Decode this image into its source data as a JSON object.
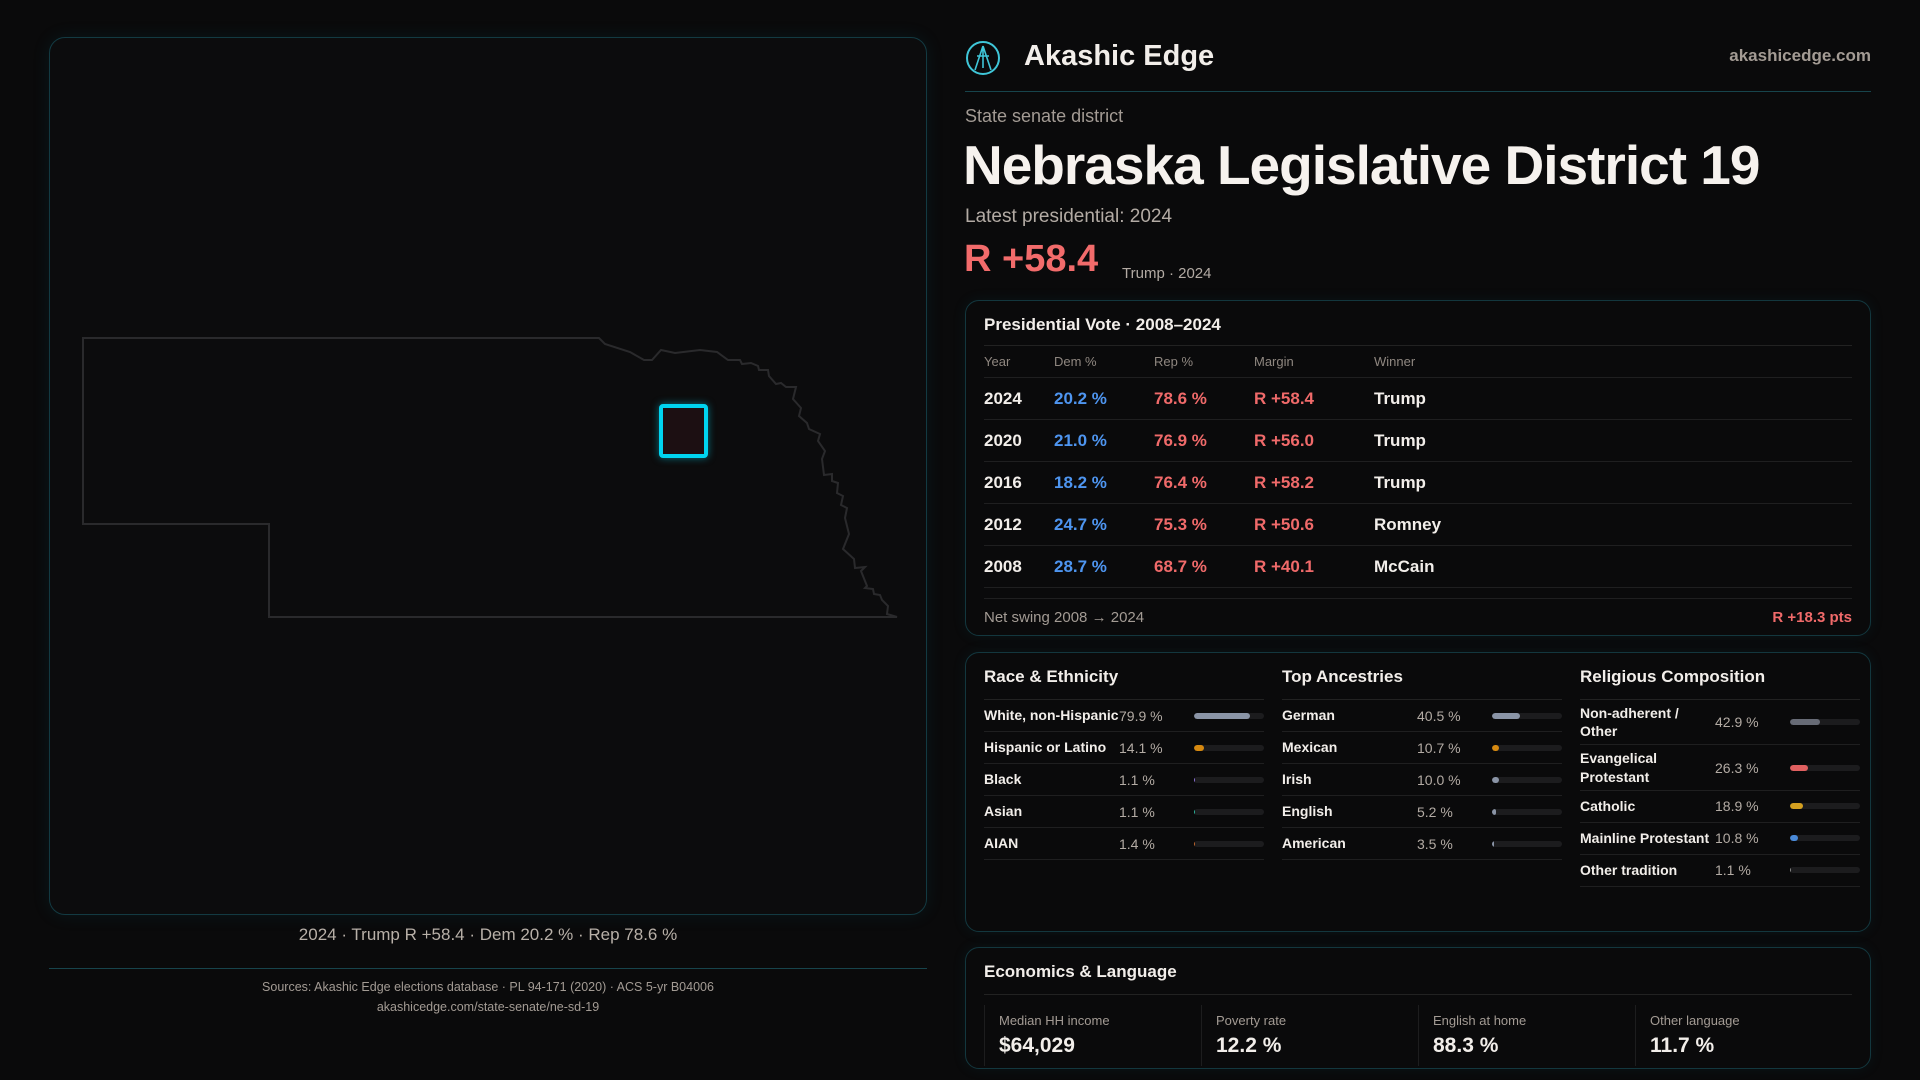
{
  "brand": {
    "name": "Akashic Edge",
    "site": "akashicedge.com",
    "logo_icon": "akashic-edge-logo-icon"
  },
  "kicker": "State senate district",
  "title": "Nebraska Legislative District 19",
  "latest_label": "Latest presidential: 2024",
  "headline_margin": "R +58.4",
  "headline_sub": "Trump · 2024",
  "map": {
    "caption": "2024 · Trump R +58.4 · Dem 20.2 % · Rep 78.6 %",
    "highlight_color": "#00d4f0"
  },
  "presidential": {
    "title": "Presidential Vote · 2008–2024",
    "columns": [
      "Year",
      "Dem %",
      "Rep %",
      "Margin",
      "Winner"
    ],
    "rows": [
      {
        "year": "2024",
        "dem": "20.2 %",
        "rep": "78.6 %",
        "margin": "R +58.4",
        "winner": "Trump"
      },
      {
        "year": "2020",
        "dem": "21.0 %",
        "rep": "76.9 %",
        "margin": "R +56.0",
        "winner": "Trump"
      },
      {
        "year": "2016",
        "dem": "18.2 %",
        "rep": "76.4 %",
        "margin": "R +58.2",
        "winner": "Trump"
      },
      {
        "year": "2012",
        "dem": "24.7 %",
        "rep": "75.3 %",
        "margin": "R +50.6",
        "winner": "Romney"
      },
      {
        "year": "2008",
        "dem": "28.7 %",
        "rep": "68.7 %",
        "margin": "R +40.1",
        "winner": "McCain"
      }
    ],
    "swing_label": "Net swing 2008 → 2024",
    "swing_value": "R +18.3 pts"
  },
  "demographics": [
    {
      "title": "Race & Ethnicity",
      "items": [
        {
          "label": "White, non-Hispanic",
          "value": "79.9 %",
          "pct": 79.9,
          "color": "#8a94a6"
        },
        {
          "label": "Hispanic or Latino",
          "value": "14.1 %",
          "pct": 14.1,
          "color": "#d68910"
        },
        {
          "label": "Black",
          "value": "1.1 %",
          "pct": 1.1,
          "color": "#8b6fd6"
        },
        {
          "label": "Asian",
          "value": "1.1 %",
          "pct": 1.1,
          "color": "#2bb39a"
        },
        {
          "label": "AIAN",
          "value": "1.4 %",
          "pct": 1.4,
          "color": "#c0652a"
        }
      ]
    },
    {
      "title": "Top Ancestries",
      "items": [
        {
          "label": "German",
          "value": "40.5 %",
          "pct": 40.5,
          "color": "#8a94a6"
        },
        {
          "label": "Mexican",
          "value": "10.7 %",
          "pct": 10.7,
          "color": "#d68910"
        },
        {
          "label": "Irish",
          "value": "10.0 %",
          "pct": 10.0,
          "color": "#8a94a6"
        },
        {
          "label": "English",
          "value": "5.2 %",
          "pct": 5.2,
          "color": "#8a94a6"
        },
        {
          "label": "American",
          "value": "3.5 %",
          "pct": 3.5,
          "color": "#8a94a6"
        }
      ]
    },
    {
      "title": "Religious Composition",
      "items": [
        {
          "label": "Non-adherent / Other",
          "value": "42.9 %",
          "pct": 42.9,
          "color": "#676b76"
        },
        {
          "label": "Evangelical Protestant",
          "value": "26.3 %",
          "pct": 26.3,
          "color": "#e06060"
        },
        {
          "label": "Catholic",
          "value": "18.9 %",
          "pct": 18.9,
          "color": "#d4a020"
        },
        {
          "label": "Mainline Protestant",
          "value": "10.8 %",
          "pct": 10.8,
          "color": "#4a8ad8"
        },
        {
          "label": "Other tradition",
          "value": "1.1 %",
          "pct": 1.1,
          "color": "#8a8a8a"
        }
      ]
    }
  ],
  "economics": {
    "title": "Economics & Language",
    "cells": [
      {
        "label": "Median HH income",
        "value": "$64,029"
      },
      {
        "label": "Poverty rate",
        "value": "12.2 %"
      },
      {
        "label": "English at home",
        "value": "88.3 %"
      },
      {
        "label": "Other language",
        "value": "11.7 %"
      }
    ]
  },
  "footer": {
    "sources": "Sources: Akashic Edge elections database · PL 94-171 (2020) · ACS 5-yr B04006",
    "url": "akashicedge.com/state-senate/ne-sd-19"
  }
}
